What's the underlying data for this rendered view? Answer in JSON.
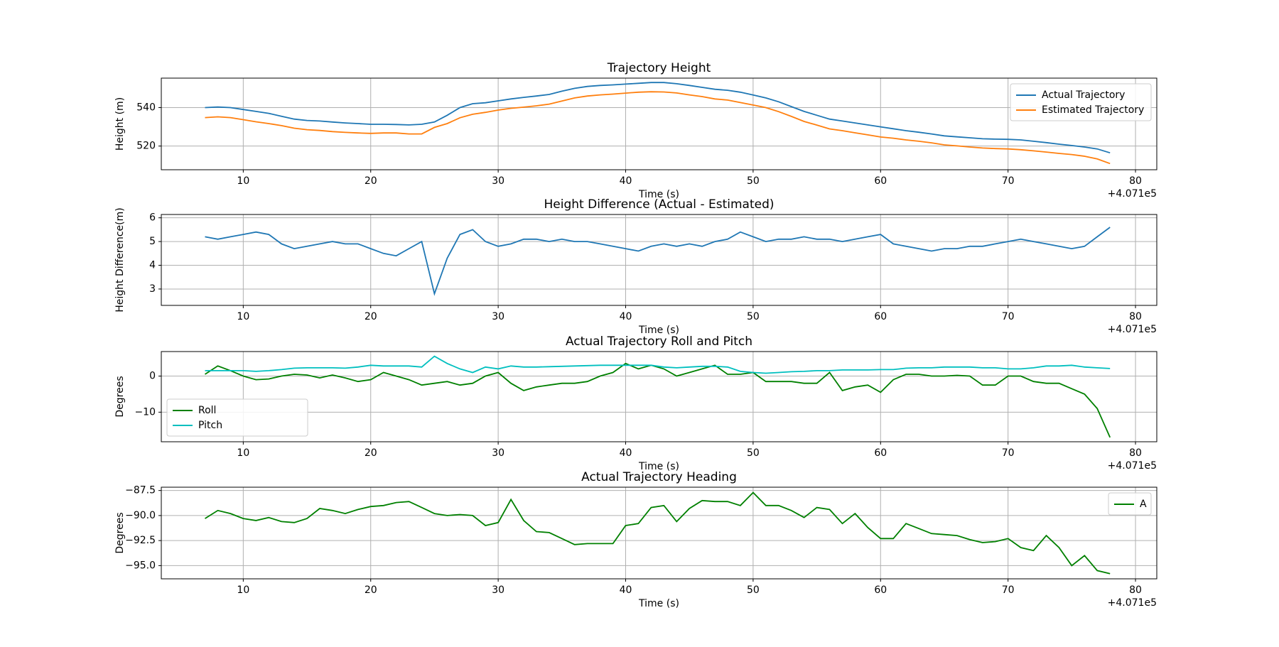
{
  "chart_data": [
    {
      "type": "line",
      "title": "Trajectory Height",
      "xlabel": "Time (s)",
      "ylabel": "Height (m)",
      "x_offset": "+4.071e5",
      "x": [
        7,
        8,
        9,
        10,
        11,
        12,
        13,
        14,
        15,
        16,
        17,
        18,
        19,
        20,
        21,
        22,
        23,
        24,
        25,
        26,
        27,
        28,
        29,
        30,
        31,
        32,
        33,
        34,
        35,
        36,
        37,
        38,
        39,
        40,
        41,
        42,
        43,
        44,
        45,
        46,
        47,
        48,
        49,
        50,
        51,
        52,
        53,
        54,
        55,
        56,
        57,
        58,
        59,
        60,
        61,
        62,
        63,
        64,
        65,
        66,
        67,
        68,
        69,
        70,
        71,
        72,
        73,
        74,
        75,
        76,
        77,
        78
      ],
      "series": [
        {
          "name": "Actual Trajectory",
          "color": "#1f77b4",
          "values": [
            540,
            540.3,
            540,
            539,
            538,
            537,
            535.5,
            534,
            533.3,
            533,
            532.5,
            532,
            531.7,
            531.3,
            531.3,
            531.2,
            531,
            531.3,
            532.5,
            536,
            540,
            542,
            542.5,
            543.5,
            544.5,
            545.3,
            546,
            546.8,
            548.5,
            550,
            551,
            551.5,
            551.8,
            552.2,
            552.6,
            553,
            553,
            552.4,
            551.5,
            550.5,
            549.5,
            549,
            548,
            546.5,
            545,
            543,
            540.5,
            538,
            536,
            534,
            533,
            532,
            531,
            530,
            529,
            528,
            527.2,
            526.3,
            525.3,
            524.8,
            524.3,
            523.8,
            523.6,
            523.5,
            523.2,
            522.5,
            521.8,
            521,
            520.3,
            519.5,
            518.5,
            516.5
          ]
        },
        {
          "name": "Estimated Trajectory",
          "color": "#ff7f0e",
          "values": [
            534.8,
            535.2,
            534.8,
            533.7,
            532.6,
            531.7,
            530.6,
            529.3,
            528.5,
            528.1,
            527.5,
            527.1,
            526.8,
            526.6,
            526.8,
            526.8,
            526.3,
            526.3,
            529.7,
            531.7,
            534.7,
            536.5,
            537.5,
            538.7,
            539.6,
            540.2,
            540.9,
            541.8,
            543.4,
            545,
            546,
            546.6,
            547,
            547.5,
            548,
            548.2,
            548.1,
            547.6,
            546.6,
            545.7,
            544.5,
            543.9,
            542.6,
            541.3,
            540,
            537.9,
            535.4,
            532.8,
            530.9,
            528.9,
            528,
            526.9,
            525.8,
            524.7,
            524.1,
            523.2,
            522.5,
            521.7,
            520.6,
            520.1,
            519.5,
            519,
            518.7,
            518.5,
            518.1,
            517.5,
            516.9,
            516.2,
            515.6,
            514.7,
            513.3,
            510.9
          ]
        }
      ],
      "xlim": [
        3.57,
        81.67
      ],
      "xticks": [
        10,
        20,
        30,
        40,
        50,
        60,
        70,
        80
      ],
      "ylim": [
        507.7,
        555.3
      ],
      "yticks": [
        520,
        540
      ],
      "grid": true,
      "legend": "upper right"
    },
    {
      "type": "line",
      "title": "Height Difference (Actual - Estimated)",
      "xlabel": "Time (s)",
      "ylabel": "Height Difference(m)",
      "x_offset": "+4.071e5",
      "x": [
        7,
        8,
        9,
        10,
        11,
        12,
        13,
        14,
        15,
        16,
        17,
        18,
        19,
        20,
        21,
        22,
        23,
        24,
        25,
        26,
        27,
        28,
        29,
        30,
        31,
        32,
        33,
        34,
        35,
        36,
        37,
        38,
        39,
        40,
        41,
        42,
        43,
        44,
        45,
        46,
        47,
        48,
        49,
        50,
        51,
        52,
        53,
        54,
        55,
        56,
        57,
        58,
        59,
        60,
        61,
        62,
        63,
        64,
        65,
        66,
        67,
        68,
        69,
        70,
        71,
        72,
        73,
        74,
        75,
        76,
        77,
        78
      ],
      "series": [
        {
          "color": "#1f77b4",
          "values": [
            5.2,
            5.1,
            5.2,
            5.3,
            5.4,
            5.3,
            4.9,
            4.7,
            4.8,
            4.9,
            5.0,
            4.9,
            4.9,
            4.7,
            4.5,
            4.4,
            4.7,
            5.0,
            2.8,
            4.3,
            5.3,
            5.5,
            5.0,
            4.8,
            4.9,
            5.1,
            5.1,
            5.0,
            5.1,
            5.0,
            5.0,
            4.9,
            4.8,
            4.7,
            4.6,
            4.8,
            4.9,
            4.8,
            4.9,
            4.8,
            5.0,
            5.1,
            5.4,
            5.2,
            5.0,
            5.1,
            5.1,
            5.2,
            5.1,
            5.1,
            5.0,
            5.1,
            5.2,
            5.3,
            4.9,
            4.8,
            4.7,
            4.6,
            4.7,
            4.7,
            4.8,
            4.8,
            4.9,
            5.0,
            5.1,
            5.0,
            4.9,
            4.8,
            4.7,
            4.8,
            5.2,
            5.6
          ]
        }
      ],
      "xlim": [
        3.57,
        81.67
      ],
      "xticks": [
        10,
        20,
        30,
        40,
        50,
        60,
        70,
        80
      ],
      "ylim": [
        2.31,
        6.14
      ],
      "yticks": [
        3,
        4,
        5,
        6
      ],
      "grid": true
    },
    {
      "type": "line",
      "title": "Actual Trajectory Roll and Pitch",
      "xlabel": "Time (s)",
      "ylabel": "Degrees",
      "x_offset": "+4.071e5",
      "x": [
        7,
        8,
        9,
        10,
        11,
        12,
        13,
        14,
        15,
        16,
        17,
        18,
        19,
        20,
        21,
        22,
        23,
        24,
        25,
        26,
        27,
        28,
        29,
        30,
        31,
        32,
        33,
        34,
        35,
        36,
        37,
        38,
        39,
        40,
        41,
        42,
        43,
        44,
        45,
        46,
        47,
        48,
        49,
        50,
        51,
        52,
        53,
        54,
        55,
        56,
        57,
        58,
        59,
        60,
        61,
        62,
        63,
        64,
        65,
        66,
        67,
        68,
        69,
        70,
        71,
        72,
        73,
        74,
        75,
        76,
        77,
        78
      ],
      "series": [
        {
          "name": "Roll",
          "color": "#008000",
          "values": [
            0.5,
            2.8,
            1.5,
            0,
            -1,
            -0.8,
            0,
            0.5,
            0.3,
            -0.5,
            0.3,
            -0.5,
            -1.5,
            -1,
            1,
            0,
            -1,
            -2.5,
            -2,
            -1.5,
            -2.5,
            -2,
            0,
            1,
            -2,
            -4,
            -3,
            -2.5,
            -2,
            -2,
            -1.5,
            0,
            1,
            3.5,
            2,
            3,
            2,
            0,
            1,
            2,
            3,
            0.5,
            0.5,
            1,
            -1.5,
            -1.5,
            -1.5,
            -2,
            -2,
            1,
            -4,
            -3,
            -2.5,
            -4.5,
            -1,
            0.5,
            0.5,
            0,
            0,
            0.2,
            0,
            -2.5,
            -2.5,
            0,
            0,
            -1.5,
            -2,
            -2,
            -3.5,
            -5,
            -9,
            -17
          ]
        },
        {
          "name": "Pitch",
          "color": "#00bfbf",
          "values": [
            1.5,
            1.5,
            1.5,
            1.5,
            1.3,
            1.5,
            1.8,
            2.2,
            2.3,
            2.3,
            2.3,
            2.2,
            2.5,
            3,
            2.8,
            2.8,
            2.8,
            2.5,
            5.5,
            3.5,
            2,
            1,
            2.5,
            2,
            2.8,
            2.5,
            2.5,
            2.6,
            2.7,
            2.8,
            2.9,
            3,
            3,
            3,
            3,
            3,
            2.5,
            2.3,
            2.5,
            2.7,
            2.7,
            2.5,
            1.3,
            1,
            0.8,
            1,
            1.2,
            1.3,
            1.5,
            1.5,
            1.7,
            1.7,
            1.7,
            1.8,
            1.8,
            2.2,
            2.3,
            2.3,
            2.5,
            2.5,
            2.5,
            2.3,
            2.3,
            2,
            2,
            2.3,
            2.8,
            2.8,
            3,
            2.5,
            2.3,
            2.1
          ]
        }
      ],
      "xlim": [
        3.57,
        81.67
      ],
      "xticks": [
        10,
        20,
        30,
        40,
        50,
        60,
        70,
        80
      ],
      "ylim": [
        -18.2,
        6.8
      ],
      "yticks": [
        {
          "value": -10,
          "label": "−10"
        },
        0
      ],
      "grid": true,
      "legend": "lower left"
    },
    {
      "type": "line",
      "title": "Actual Trajectory Heading",
      "xlabel": "Time (s)",
      "ylabel": "Degrees",
      "x_offset": "+4.071e5",
      "x": [
        7,
        8,
        9,
        10,
        11,
        12,
        13,
        14,
        15,
        16,
        17,
        18,
        19,
        20,
        21,
        22,
        23,
        24,
        25,
        26,
        27,
        28,
        29,
        30,
        31,
        32,
        33,
        34,
        35,
        36,
        37,
        38,
        39,
        40,
        41,
        42,
        43,
        44,
        45,
        46,
        47,
        48,
        49,
        50,
        51,
        52,
        53,
        54,
        55,
        56,
        57,
        58,
        59,
        60,
        61,
        62,
        63,
        64,
        65,
        66,
        67,
        68,
        69,
        70,
        71,
        72,
        73,
        74,
        75,
        76,
        77,
        78
      ],
      "series": [
        {
          "name": "A",
          "color": "#008000",
          "values": [
            -90.3,
            -89.5,
            -89.8,
            -90.3,
            -90.5,
            -90.2,
            -90.6,
            -90.7,
            -90.3,
            -89.3,
            -89.5,
            -89.8,
            -89.4,
            -89.1,
            -89.0,
            -88.7,
            -88.6,
            -89.2,
            -89.8,
            -90,
            -89.9,
            -90,
            -91,
            -90.7,
            -88.4,
            -90.5,
            -91.6,
            -91.7,
            -92.3,
            -92.9,
            -92.8,
            -92.8,
            -92.8,
            -91,
            -90.8,
            -89.2,
            -89,
            -90.6,
            -89.3,
            -88.5,
            -88.6,
            -88.6,
            -89,
            -87.7,
            -89,
            -89,
            -89.5,
            -90.2,
            -89.2,
            -89.4,
            -90.8,
            -89.8,
            -91.2,
            -92.3,
            -92.3,
            -90.8,
            -91.3,
            -91.8,
            -91.9,
            -92,
            -92.4,
            -92.7,
            -92.6,
            -92.3,
            -93.2,
            -93.5,
            -92,
            -93.2,
            -95,
            -94,
            -95.5,
            -95.8
          ]
        }
      ],
      "xlim": [
        3.57,
        81.67
      ],
      "xticks": [
        10,
        20,
        30,
        40,
        50,
        60,
        70,
        80
      ],
      "ylim": [
        -96.32,
        -87.17
      ],
      "yticks": [
        {
          "value": -95,
          "label": "−95.0"
        },
        {
          "value": -92.5,
          "label": "−92.5"
        },
        {
          "value": -90,
          "label": "−90.0"
        },
        {
          "value": -87.5,
          "label": "−87.5"
        }
      ],
      "grid": true,
      "legend": "upper right"
    }
  ]
}
